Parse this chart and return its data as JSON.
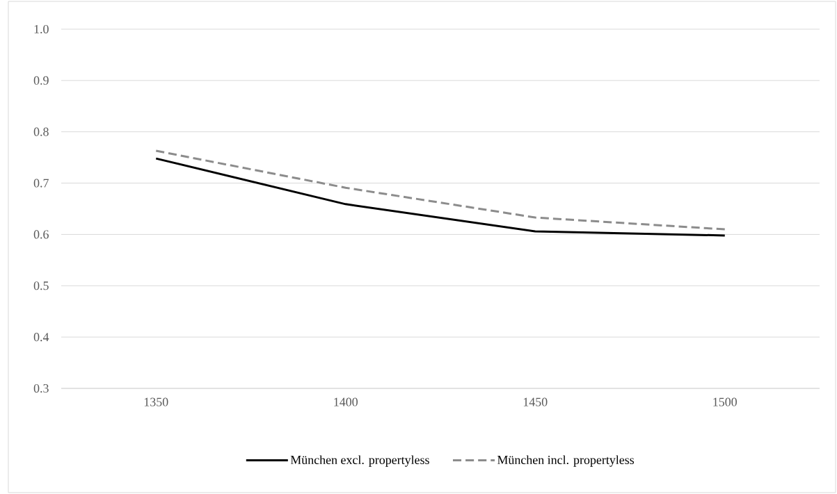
{
  "chart_data": {
    "type": "line",
    "categories": [
      "1350",
      "1400",
      "1450",
      "1500"
    ],
    "series": [
      {
        "name": "München excl. propertyless",
        "color": "#000000",
        "line_style": "solid",
        "values": [
          0.748,
          0.659,
          0.606,
          0.598
        ]
      },
      {
        "name": "München incl. propertyless",
        "color": "#8c8c8c",
        "line_style": "dashed",
        "values": [
          0.763,
          0.691,
          0.633,
          0.61
        ]
      }
    ],
    "ylim": [
      0.3,
      1.0
    ],
    "yticks": [
      0.3,
      0.4,
      0.5,
      0.6,
      0.7,
      0.8,
      0.9,
      {
        "value": 1.0,
        "label": "1.0"
      }
    ],
    "grid": "y",
    "legend": "bottom"
  }
}
